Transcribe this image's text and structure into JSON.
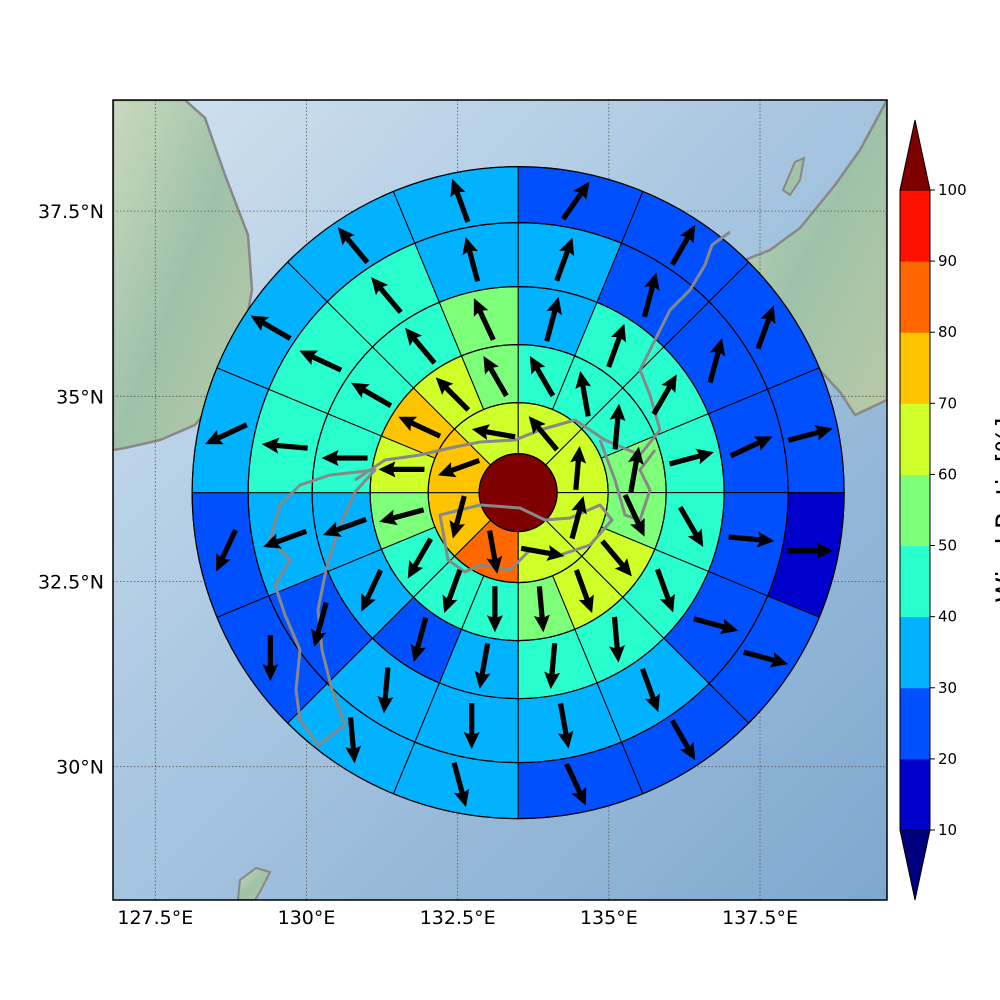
{
  "chart_data": {
    "type": "polar-sector-map",
    "x_ticks": [
      "127.5°E",
      "130°E",
      "132.5°E",
      "135°E",
      "137.5°E"
    ],
    "y_ticks": [
      "37.5°N",
      "35°N",
      "32.5°N",
      "30°N"
    ],
    "grid": true,
    "lon_range": [
      126.8,
      139.6
    ],
    "lat_range": [
      28.2,
      39.0
    ],
    "center": {
      "lon": 133.5,
      "lat": 33.7
    },
    "colorbar": {
      "label": "Wind Ratio[%]",
      "ticks": [
        "10",
        "20",
        "30",
        "40",
        "50",
        "60",
        "70",
        "80",
        "90",
        "100"
      ],
      "levels": [
        10,
        20,
        30,
        40,
        50,
        60,
        70,
        80,
        90,
        100
      ],
      "colors": [
        "#0000cd",
        "#0050ff",
        "#00b2ff",
        "#29ffce",
        "#7dff7a",
        "#ceff29",
        "#ffc400",
        "#ff6800",
        "#ff1000"
      ],
      "under_color": "#00007f",
      "over_color": "#7f0000"
    },
    "center_value": 100,
    "rings": [
      {
        "ratio": [
          65,
          60,
          60,
          65,
          80,
          75,
          70,
          60
        ],
        "dir": [
          320,
          5,
          15,
          100,
          170,
          195,
          250,
          280
        ]
      },
      {
        "ratio": [
          45,
          40,
          45,
          50,
          55,
          60,
          60,
          55,
          40,
          40,
          40,
          55,
          60,
          70,
          65,
          55
        ],
        "dir": [
          330,
          350,
          5,
          10,
          155,
          140,
          160,
          175,
          180,
          200,
          210,
          255,
          270,
          295,
          315,
          330
        ]
      },
      {
        "ratio": [
          35,
          45,
          45,
          45,
          45,
          45,
          45,
          40,
          30,
          25,
          30,
          30,
          40,
          45,
          40,
          55
        ],
        "dir": [
          15,
          20,
          30,
          75,
          150,
          160,
          175,
          185,
          190,
          195,
          205,
          250,
          270,
          300,
          320,
          335
        ]
      },
      {
        "ratio": [
          30,
          25,
          25,
          25,
          25,
          25,
          35,
          35,
          35,
          35,
          25,
          35,
          40,
          40,
          40,
          30
        ],
        "dir": [
          20,
          15,
          15,
          65,
          95,
          105,
          160,
          170,
          180,
          185,
          195,
          250,
          275,
          295,
          320,
          345
        ]
      },
      {
        "ratio": [
          25,
          25,
          25,
          25,
          15,
          25,
          25,
          25,
          35,
          30,
          25,
          25,
          30,
          30,
          30,
          30
        ],
        "dir": [
          35,
          30,
          20,
          75,
          90,
          105,
          150,
          155,
          165,
          175,
          180,
          205,
          245,
          300,
          320,
          340
        ]
      }
    ]
  }
}
